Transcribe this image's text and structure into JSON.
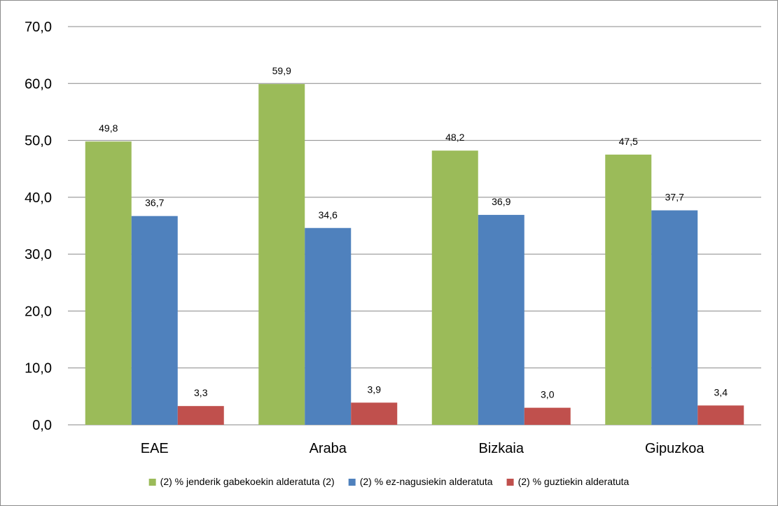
{
  "chart_data": {
    "type": "bar",
    "categories": [
      "EAE",
      "Araba",
      "Bizkaia",
      "Gipuzkoa"
    ],
    "series": [
      {
        "name": "(2) % jenderik gabekoekin alderatuta (2)",
        "values": [
          49.8,
          59.9,
          48.2,
          47.5
        ],
        "labels": [
          "49,8",
          "59,9",
          "48,2",
          "47,5"
        ],
        "color": "#9bbb59"
      },
      {
        "name": "(2) % ez-nagusiekin alderatuta",
        "values": [
          36.7,
          34.6,
          36.9,
          37.7
        ],
        "labels": [
          "36,7",
          "34,6",
          "36,9",
          "37,7"
        ],
        "color": "#4f81bd"
      },
      {
        "name": "(2) % guztiekin alderatuta",
        "values": [
          3.3,
          3.9,
          3.0,
          3.4
        ],
        "labels": [
          "3,3",
          "3,9",
          "3,0",
          "3,4"
        ],
        "color": "#c0504d"
      }
    ],
    "yticks": [
      "0,0",
      "10,0",
      "20,0",
      "30,0",
      "40,0",
      "50,0",
      "60,0",
      "70,0"
    ],
    "ylim": [
      0,
      70
    ],
    "ystep": 10,
    "grid": true,
    "legend_position": "bottom",
    "gridline_color": "#888888"
  }
}
